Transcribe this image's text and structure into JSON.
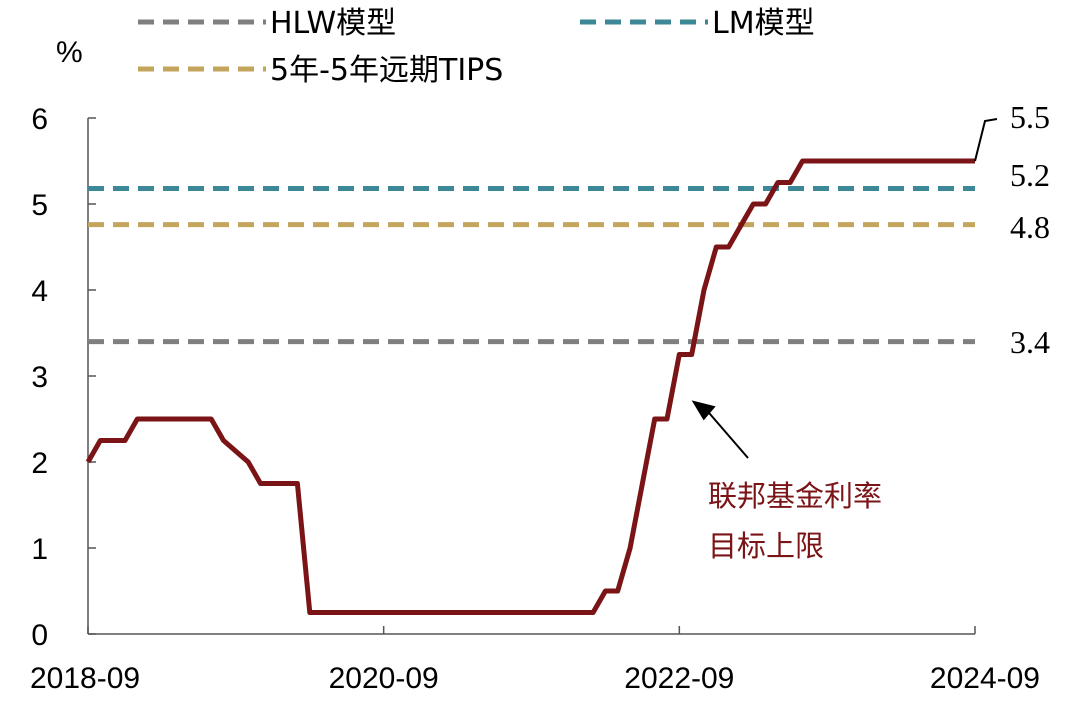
{
  "chart_data": {
    "type": "line",
    "ylabel": "%",
    "ylim": [
      0,
      6
    ],
    "yticks": [
      "0",
      "1",
      "2",
      "3",
      "4",
      "5",
      "6"
    ],
    "xlim": [
      "2018-09",
      "2024-09"
    ],
    "xticks": [
      "2018-09",
      "2020-09",
      "2022-09",
      "2024-09"
    ],
    "grid": false,
    "legend_position": "top",
    "series": [
      {
        "name": "HLW模型",
        "style": "dashed",
        "color": "#7f7f7f",
        "x": [
          "2018-09",
          "2024-09"
        ],
        "values": [
          3.4,
          3.4
        ],
        "end_label": "3.4"
      },
      {
        "name": "LM模型",
        "style": "dashed",
        "color": "#3d8896",
        "x": [
          "2018-09",
          "2024-09"
        ],
        "values": [
          5.18,
          5.18
        ],
        "end_label": "5.2"
      },
      {
        "name": "5年-5年远期TIPS",
        "style": "dashed",
        "color": "#c3a55e",
        "x": [
          "2018-09",
          "2024-09"
        ],
        "values": [
          4.76,
          4.76
        ],
        "end_label": "4.8"
      },
      {
        "name": "联邦基金利率目标上限",
        "style": "solid",
        "color": "#7a1416",
        "x": [
          "2018-09",
          "2018-10",
          "2018-12",
          "2019-01",
          "2019-07",
          "2019-08",
          "2019-10",
          "2019-11",
          "2020-02",
          "2020-03",
          "2022-02",
          "2022-03",
          "2022-04",
          "2022-05",
          "2022-06",
          "2022-07",
          "2022-08",
          "2022-09",
          "2022-10",
          "2022-11",
          "2022-12",
          "2023-01",
          "2023-02",
          "2023-03",
          "2023-04",
          "2023-05",
          "2023-06",
          "2023-07",
          "2023-08",
          "2024-09"
        ],
        "values": [
          2.0,
          2.25,
          2.25,
          2.5,
          2.5,
          2.25,
          2.0,
          1.75,
          1.75,
          0.25,
          0.25,
          0.5,
          0.5,
          1.0,
          1.75,
          2.5,
          2.5,
          3.25,
          3.25,
          4.0,
          4.5,
          4.5,
          4.75,
          5.0,
          5.0,
          5.25,
          5.25,
          5.5,
          5.5,
          5.5
        ],
        "end_label": "5.5"
      }
    ],
    "legend": [
      {
        "label": "HLW模型",
        "color": "#7f7f7f"
      },
      {
        "label": "LM模型",
        "color": "#3d8896"
      },
      {
        "label": "5年-5年远期TIPS",
        "color": "#c3a55e"
      }
    ],
    "annotation": {
      "lines": [
        "联邦基金利率",
        "目标上限"
      ],
      "color": "#7a1416",
      "points_to": {
        "x": "2022-10",
        "y": 2.6
      }
    }
  }
}
